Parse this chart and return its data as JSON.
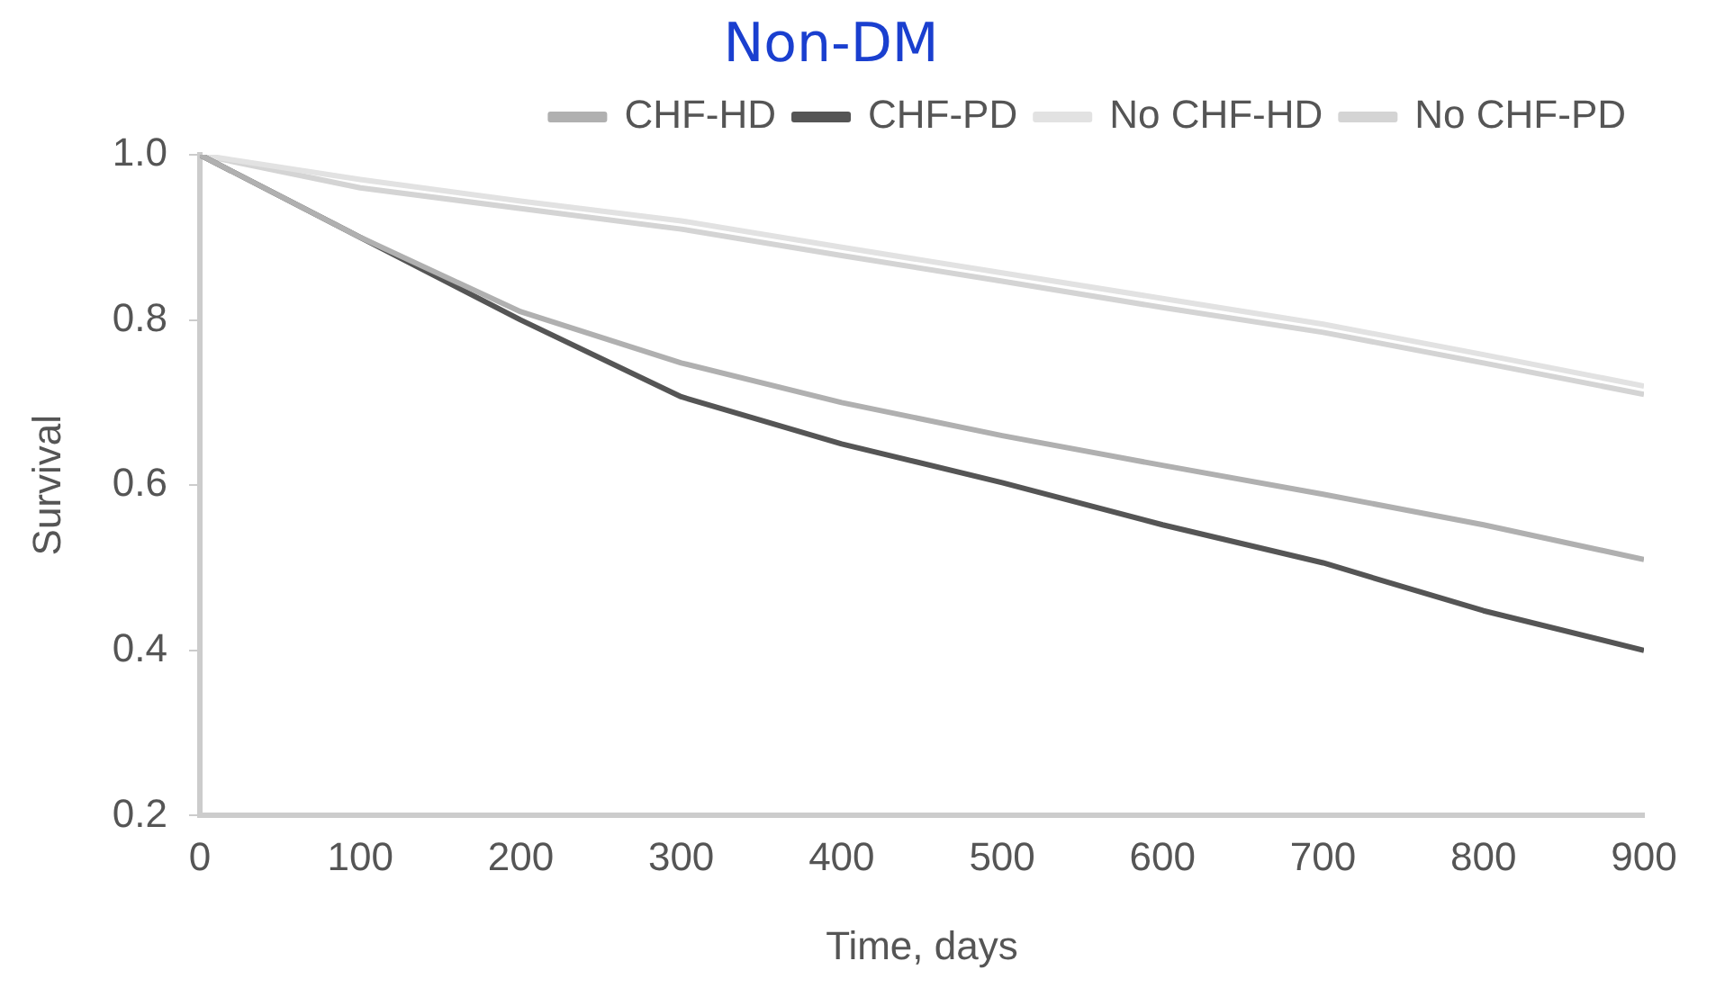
{
  "chart_data": {
    "type": "line",
    "title": "Non-DM",
    "xlabel": "Time, days",
    "ylabel": "Survival",
    "x": [
      0,
      100,
      200,
      300,
      400,
      500,
      600,
      700,
      800,
      900
    ],
    "series": [
      {
        "name": "CHF-HD",
        "color": "#b0b0b0",
        "values": [
          1.0,
          0.9,
          0.81,
          0.748,
          0.7,
          0.66,
          0.624,
          0.589,
          0.552,
          0.51
        ]
      },
      {
        "name": "CHF-PD",
        "color": "#555555",
        "values": [
          1.0,
          0.9,
          0.8,
          0.707,
          0.65,
          0.603,
          0.552,
          0.506,
          0.448,
          0.4
        ]
      },
      {
        "name": "No CHF-HD",
        "color": "#e2e2e2",
        "values": [
          1.0,
          0.97,
          0.944,
          0.92,
          0.888,
          0.857,
          0.826,
          0.795,
          0.758,
          0.72
        ]
      },
      {
        "name": "No CHF-PD",
        "color": "#d4d4d4",
        "values": [
          1.0,
          0.96,
          0.935,
          0.91,
          0.878,
          0.847,
          0.815,
          0.785,
          0.748,
          0.71
        ]
      }
    ],
    "xlim": [
      0,
      900
    ],
    "xticks": [
      0,
      100,
      200,
      300,
      400,
      500,
      600,
      700,
      800,
      900
    ],
    "ylim": [
      0.2,
      1.0
    ],
    "yticks": [
      {
        "value": 0.2,
        "label": "0.2"
      },
      {
        "value": 0.4,
        "label": "0.4"
      },
      {
        "value": 0.6,
        "label": "0.6"
      },
      {
        "value": 0.8,
        "label": "0.8"
      },
      {
        "value": 1.0,
        "label": "1.0"
      }
    ],
    "grid": false,
    "legend": "top right",
    "marker": "none",
    "line_style": "solid"
  }
}
